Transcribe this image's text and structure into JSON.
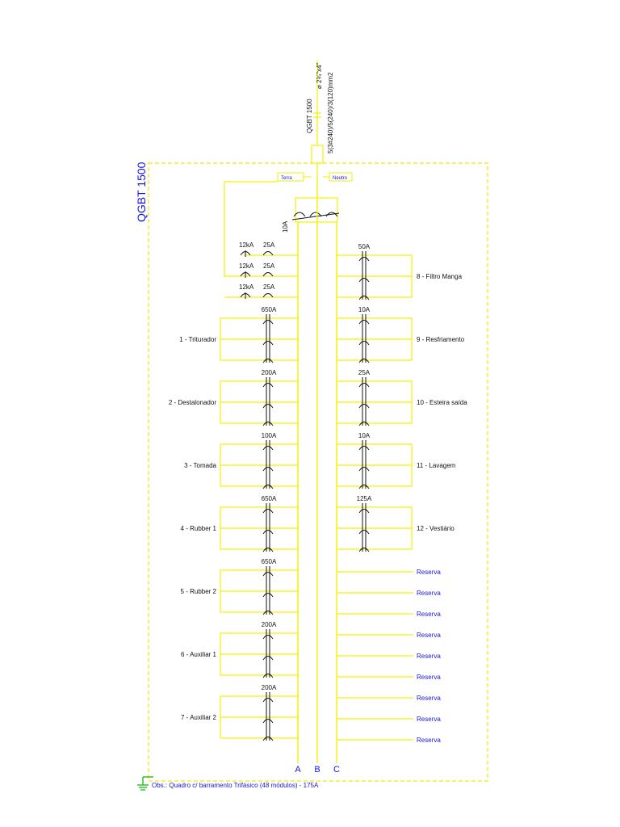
{
  "panel": {
    "title": "QGBT 1500",
    "feed_name": "QGBT 1500",
    "feed_conduit": "⌀ 2¾\"x4\"",
    "feed_cable": "5(3#240)/5(240)/3(120)mm2",
    "earth_label": "Terra",
    "neutral_label": "Neutro",
    "main_breaker": "10A",
    "note": "Obs.: Quadro c/ barramento Trifásico (48 módulos) - 175A"
  },
  "busbars": [
    "A",
    "B",
    "C"
  ],
  "protection": {
    "dps": [
      "12kA",
      "12kA",
      "12kA"
    ],
    "dps_fuses": [
      "25A",
      "25A",
      "25A"
    ]
  },
  "left_circuits": [
    {
      "rating": "650A",
      "label": "1 - Triturador"
    },
    {
      "rating": "200A",
      "label": "2 - Destalonador"
    },
    {
      "rating": "100A",
      "label": "3 - Tomada"
    },
    {
      "rating": "650A",
      "label": "4 - Rubber 1"
    },
    {
      "rating": "650A",
      "label": "5 - Rubber 2"
    },
    {
      "rating": "200A",
      "label": "6 - Auxiliar 1"
    },
    {
      "rating": "200A",
      "label": "7 - Auxiliar 2"
    }
  ],
  "right_circuits": [
    {
      "rating": "50A",
      "label": "8 - Filtro Manga"
    },
    {
      "rating": "10A",
      "label": "9 - Resfriamento"
    },
    {
      "rating": "25A",
      "label": "10 - Esteira saída"
    },
    {
      "rating": "10A",
      "label": "11 - Lavagem"
    },
    {
      "rating": "125A",
      "label": "12 - Vestiário"
    }
  ],
  "reserves": [
    "Reserva",
    "Reserva",
    "Reserva",
    "Reserva",
    "Reserva",
    "Reserva",
    "Reserva",
    "Reserva",
    "Reserva"
  ],
  "colors": {
    "wire": "#f2f200",
    "boundary": "#f2e800",
    "blue_text": "#1515e6",
    "text": "#111111",
    "ground": "#00b300"
  }
}
